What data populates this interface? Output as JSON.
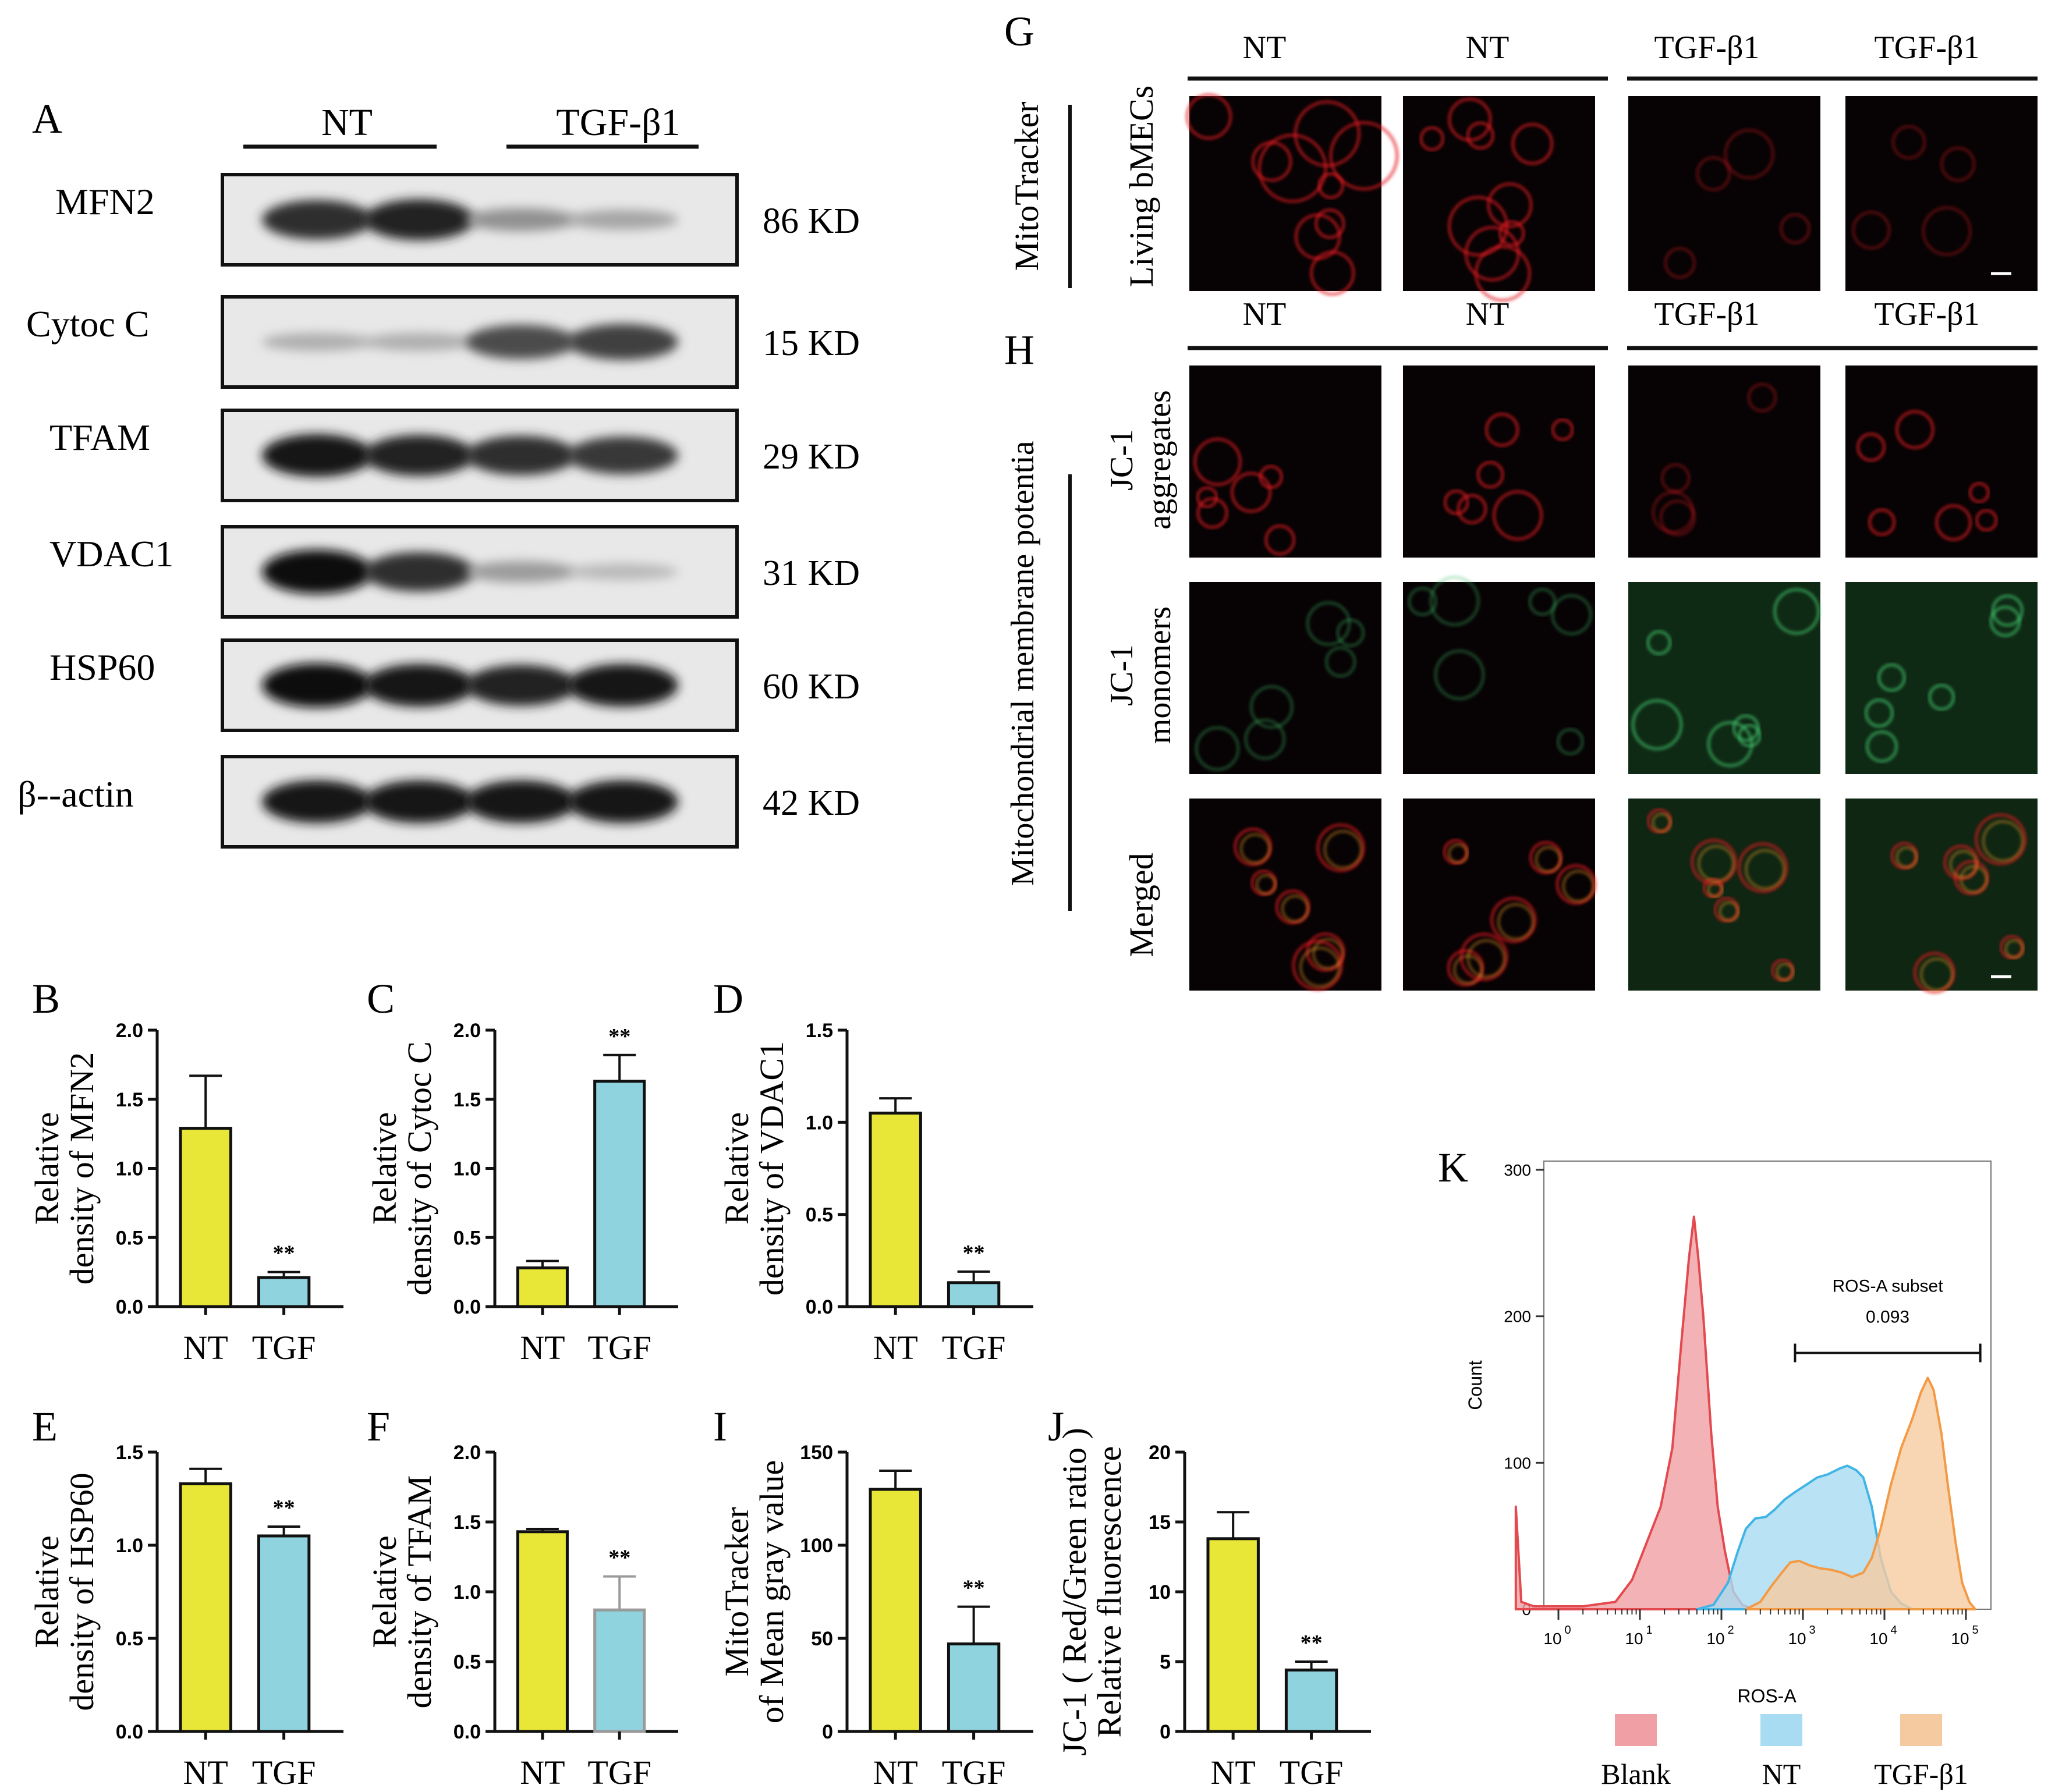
{
  "panel_letters": {
    "A": "A",
    "B": "B",
    "C": "C",
    "D": "D",
    "E": "E",
    "F": "F",
    "G": "G",
    "H": "H",
    "I": "I",
    "J": "J",
    "K": "K"
  },
  "western": {
    "groups": [
      "NT",
      "TGF-β1"
    ],
    "rows": [
      {
        "protein": "MFN2",
        "size": "86 KD",
        "bands": [
          0.85,
          0.9,
          0.35,
          0.25
        ]
      },
      {
        "protein": "Cytoc C",
        "size": "15 KD",
        "bands": [
          0.2,
          0.2,
          0.7,
          0.75
        ]
      },
      {
        "protein": "TFAM",
        "size": "29 KD",
        "bands": [
          0.95,
          0.9,
          0.85,
          0.8
        ]
      },
      {
        "protein": "VDAC1",
        "size": "31 KD",
        "bands": [
          1.0,
          0.85,
          0.3,
          0.15
        ]
      },
      {
        "protein": "HSP60",
        "size": "60 KD",
        "bands": [
          1.0,
          0.95,
          0.9,
          0.95
        ]
      },
      {
        "protein": "β--actin",
        "size": "42 KD",
        "bands": [
          0.95,
          0.95,
          0.95,
          0.95
        ]
      }
    ]
  },
  "microscopy": {
    "G": {
      "col_labels": [
        "NT",
        "NT",
        "TGF-β1",
        "TGF-β1"
      ],
      "outer_label": "MitoTracker",
      "row_labels": [
        [
          "Living bMECs"
        ]
      ]
    },
    "H": {
      "col_labels": [
        "NT",
        "NT",
        "TGF-β1",
        "TGF-β1"
      ],
      "outer_label": "Mitochondrial membrane potentia",
      "row_labels": [
        [
          "JC-1",
          "aggregates"
        ],
        [
          "JC-1",
          "monomers"
        ],
        [
          "Merged"
        ]
      ]
    }
  },
  "chart_data": [
    {
      "panel": "B",
      "type": "bar",
      "categories": [
        "NT",
        "TGF"
      ],
      "values": [
        1.29,
        0.21
      ],
      "errors": [
        0.38,
        0.04
      ],
      "ylabel_lines": [
        "Relative",
        "density of  MFN2"
      ],
      "ylim": [
        0,
        2.0
      ],
      "yticks": [
        "0.0",
        "0.5",
        "1.0",
        "1.5",
        "2.0"
      ],
      "colors": [
        "#e8e637",
        "#8fd3df"
      ],
      "sig": "**"
    },
    {
      "panel": "C",
      "type": "bar",
      "categories": [
        "NT",
        "TGF"
      ],
      "values": [
        0.28,
        1.63
      ],
      "errors": [
        0.05,
        0.19
      ],
      "ylabel_lines": [
        "Relative",
        "density of  Cytoc C"
      ],
      "ylim": [
        0,
        2.0
      ],
      "yticks": [
        "0.0",
        "0.5",
        "1.0",
        "1.5",
        "2.0"
      ],
      "colors": [
        "#e8e637",
        "#8fd3df"
      ],
      "sig": "**"
    },
    {
      "panel": "D",
      "type": "bar",
      "categories": [
        "NT",
        "TGF"
      ],
      "values": [
        1.05,
        0.13
      ],
      "errors": [
        0.08,
        0.06
      ],
      "ylabel_lines": [
        "Relative",
        "density of  VDAC1"
      ],
      "ylim": [
        0,
        1.5
      ],
      "yticks": [
        "0.0",
        "0.5",
        "1.0",
        "1.5"
      ],
      "colors": [
        "#e8e637",
        "#8fd3df"
      ],
      "sig": "**"
    },
    {
      "panel": "E",
      "type": "bar",
      "categories": [
        "NT",
        "TGF"
      ],
      "values": [
        1.33,
        1.05
      ],
      "errors": [
        0.08,
        0.05
      ],
      "ylabel_lines": [
        "Relative",
        "density of  HSP60"
      ],
      "ylim": [
        0,
        1.5
      ],
      "yticks": [
        "0.0",
        "0.5",
        "1.0",
        "1.5"
      ],
      "colors": [
        "#e8e637",
        "#8fd3df"
      ],
      "sig": "**"
    },
    {
      "panel": "F",
      "type": "bar",
      "categories": [
        "NT",
        "TGF"
      ],
      "values": [
        1.43,
        0.87
      ],
      "errors": [
        0.02,
        0.24
      ],
      "ylabel_lines": [
        "Relative",
        "density of  TFAM"
      ],
      "ylim": [
        0,
        2.0
      ],
      "yticks": [
        "0.0",
        "0.5",
        "1.0",
        "1.5",
        "2.0"
      ],
      "colors": [
        "#e8e637",
        "#8fd3df"
      ],
      "sig": "**"
    },
    {
      "panel": "I",
      "type": "bar",
      "categories": [
        "NT",
        "TGF"
      ],
      "values": [
        130,
        47
      ],
      "errors": [
        10,
        20
      ],
      "ylabel_lines": [
        "MitoTracker",
        "of Mean gray value"
      ],
      "ylim": [
        0,
        150
      ],
      "yticks": [
        "0",
        "50",
        "100",
        "150"
      ],
      "colors": [
        "#e8e637",
        "#8fd3df"
      ],
      "sig": "**"
    },
    {
      "panel": "J",
      "type": "bar",
      "categories": [
        "NT",
        "TGF"
      ],
      "values": [
        13.8,
        4.4
      ],
      "errors": [
        1.9,
        0.6
      ],
      "ylabel_lines": [
        "JC-1 ( Red/Green ratio )",
        "Relative fluorescence"
      ],
      "ylim": [
        0,
        20
      ],
      "yticks": [
        "0",
        "5",
        "10",
        "15",
        "20"
      ],
      "colors": [
        "#e8e637",
        "#8fd3df"
      ],
      "sig": "**"
    },
    {
      "panel": "K",
      "type": "area",
      "xlabel": "ROS-A",
      "ylabel": "Count",
      "ylim": [
        0,
        300
      ],
      "yticks": [
        "0",
        "100",
        "200",
        "300"
      ],
      "xscale": "log",
      "xticks": [
        {
          "base": "10",
          "exp": "0"
        },
        {
          "base": "10",
          "exp": "1"
        },
        {
          "base": "10",
          "exp": "2"
        },
        {
          "base": "10",
          "exp": "3"
        },
        {
          "base": "10",
          "exp": "4"
        },
        {
          "base": "10",
          "exp": "5"
        }
      ],
      "gate": {
        "name": "ROS-A subset",
        "value": "0.093",
        "from": 800,
        "to": 150000,
        "y": 175
      },
      "series": [
        {
          "name": "Blank",
          "fill": "#f0a0a4",
          "stroke": "#e34a4f",
          "points": [
            [
              0.3,
              70
            ],
            [
              0.35,
              5
            ],
            [
              0.5,
              2
            ],
            [
              2,
              2
            ],
            [
              5,
              5
            ],
            [
              8,
              20
            ],
            [
              12,
              45
            ],
            [
              18,
              70
            ],
            [
              25,
              110
            ],
            [
              32,
              180
            ],
            [
              40,
              240
            ],
            [
              46,
              268
            ],
            [
              52,
              240
            ],
            [
              60,
              200
            ],
            [
              75,
              120
            ],
            [
              90,
              70
            ],
            [
              110,
              40
            ],
            [
              140,
              12
            ],
            [
              180,
              3
            ],
            [
              250,
              0
            ]
          ]
        },
        {
          "name": "NT",
          "fill": "#a8dcf2",
          "stroke": "#41b4e6",
          "points": [
            [
              50,
              0
            ],
            [
              80,
              3
            ],
            [
              120,
              18
            ],
            [
              160,
              40
            ],
            [
              200,
              55
            ],
            [
              260,
              62
            ],
            [
              350,
              63
            ],
            [
              450,
              68
            ],
            [
              600,
              75
            ],
            [
              800,
              80
            ],
            [
              1100,
              85
            ],
            [
              1500,
              90
            ],
            [
              2000,
              92
            ],
            [
              2800,
              96
            ],
            [
              3500,
              98
            ],
            [
              4500,
              95
            ],
            [
              5500,
              90
            ],
            [
              7000,
              70
            ],
            [
              9000,
              35
            ],
            [
              12000,
              12
            ],
            [
              16000,
              4
            ],
            [
              22000,
              0
            ]
          ]
        },
        {
          "name": "TGF-β1",
          "fill": "#f6caa0",
          "stroke": "#f39a45",
          "points": [
            [
              200,
              0
            ],
            [
              300,
              5
            ],
            [
              400,
              15
            ],
            [
              550,
              25
            ],
            [
              700,
              32
            ],
            [
              900,
              33
            ],
            [
              1200,
              30
            ],
            [
              1600,
              28
            ],
            [
              2200,
              27
            ],
            [
              3000,
              25
            ],
            [
              4000,
              22
            ],
            [
              5500,
              25
            ],
            [
              7000,
              35
            ],
            [
              9000,
              55
            ],
            [
              12000,
              85
            ],
            [
              16000,
              110
            ],
            [
              22000,
              130
            ],
            [
              28000,
              148
            ],
            [
              34000,
              158
            ],
            [
              40000,
              150
            ],
            [
              50000,
              120
            ],
            [
              60000,
              85
            ],
            [
              75000,
              45
            ],
            [
              90000,
              18
            ],
            [
              110000,
              5
            ],
            [
              130000,
              0
            ]
          ]
        }
      ]
    }
  ]
}
